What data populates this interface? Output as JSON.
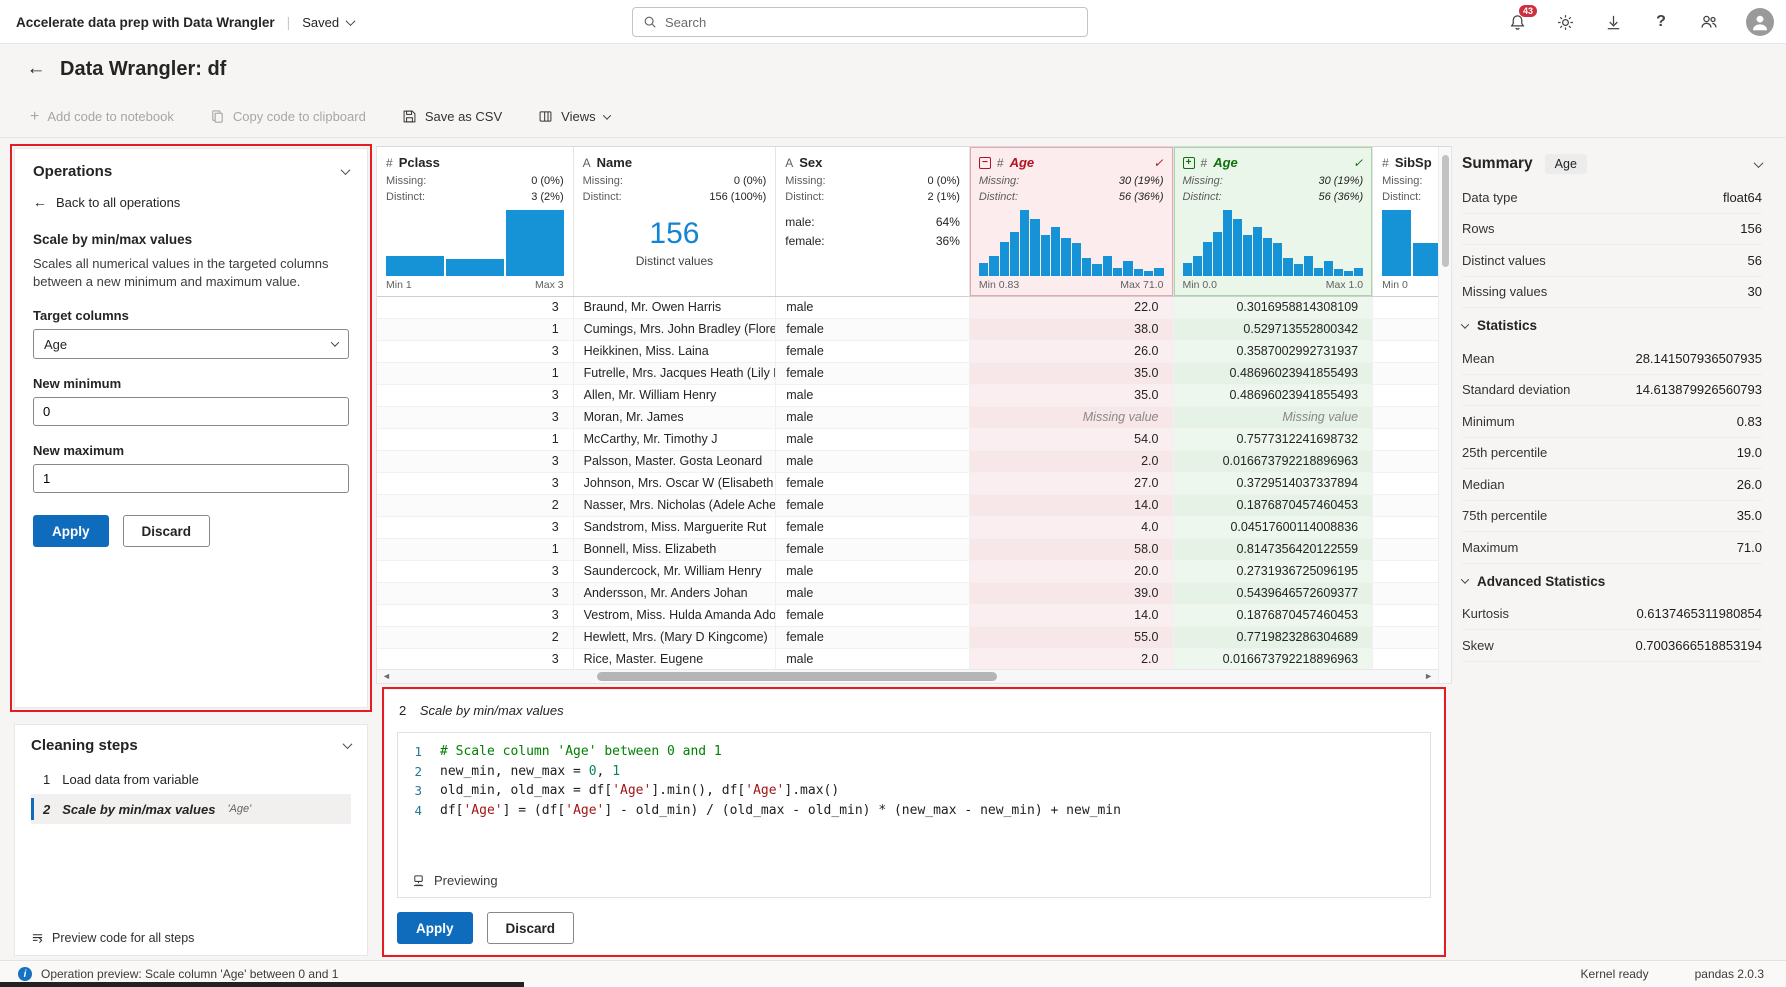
{
  "top_bar": {
    "app_title": "Accelerate data prep with Data Wrangler",
    "separator": "|",
    "save_status": "Saved",
    "search_placeholder": "Search",
    "notification_count": "43"
  },
  "page_header": {
    "title": "Data Wrangler: df"
  },
  "command_bar": {
    "add_code_label": "Add code to notebook",
    "copy_code_label": "Copy code to clipboard",
    "save_csv_label": "Save as CSV",
    "views_label": "Views"
  },
  "operations_panel": {
    "title": "Operations",
    "back_label": "Back to all operations",
    "operation_name": "Scale by min/max values",
    "description": "Scales all numerical values in the targeted columns between a new minimum and maximum value.",
    "target_columns_label": "Target columns",
    "target_columns_value": "Age",
    "new_minimum_label": "New minimum",
    "new_minimum_value": "0",
    "new_maximum_label": "New maximum",
    "new_maximum_value": "1",
    "apply_label": "Apply",
    "discard_label": "Discard"
  },
  "cleaning_steps": {
    "title": "Cleaning steps",
    "steps": [
      {
        "number": "1",
        "label": "Load data from variable",
        "detail": "",
        "selected": false
      },
      {
        "number": "2",
        "label": "Scale by min/max values",
        "detail": "'Age'",
        "selected": true
      }
    ],
    "preview_all_label": "Preview code for all steps"
  },
  "grid": {
    "missing_cell_label": "Missing value",
    "columns": {
      "pclass": {
        "type_icon": "#",
        "name": "Pclass",
        "missing_label": "Missing:",
        "missing": "0 (0%)",
        "distinct_label": "Distinct:",
        "distinct": "3 (2%)",
        "min": "Min 1",
        "max": "Max 3",
        "bars": [
          0.3,
          0.26,
          1.0
        ]
      },
      "name": {
        "type_icon": "A",
        "name": "Name",
        "missing_label": "Missing:",
        "missing": "0 (0%)",
        "distinct_label": "Distinct:",
        "distinct": "156 (100%)",
        "distinct_count": "156",
        "distinct_caption": "Distinct values"
      },
      "sex": {
        "type_icon": "A",
        "name": "Sex",
        "missing_label": "Missing:",
        "missing": "0 (0%)",
        "distinct_label": "Distinct:",
        "distinct": "2 (1%)",
        "categories": [
          {
            "label": "male:",
            "pct": "64%"
          },
          {
            "label": "female:",
            "pct": "36%"
          }
        ]
      },
      "age_old": {
        "type_icon": "#",
        "name": "Age",
        "diff": "removed",
        "diff_glyph": "−",
        "check": "✓",
        "missing_label": "Missing:",
        "missing": "30 (19%)",
        "distinct_label": "Distinct:",
        "distinct": "56 (36%)",
        "min": "Min 0.83",
        "max": "Max 71.0",
        "bars": [
          0.2,
          0.3,
          0.52,
          0.66,
          1.0,
          0.86,
          0.62,
          0.74,
          0.58,
          0.5,
          0.28,
          0.18,
          0.3,
          0.12,
          0.22,
          0.1,
          0.08,
          0.12
        ]
      },
      "age_new": {
        "type_icon": "#",
        "name": "Age",
        "diff": "added",
        "diff_glyph": "+",
        "check": "✓",
        "missing_label": "Missing:",
        "missing": "30 (19%)",
        "distinct_label": "Distinct:",
        "distinct": "56 (36%)",
        "min": "Min 0.0",
        "max": "Max 1.0",
        "bars": [
          0.2,
          0.3,
          0.52,
          0.66,
          1.0,
          0.86,
          0.62,
          0.74,
          0.58,
          0.5,
          0.28,
          0.18,
          0.3,
          0.12,
          0.22,
          0.1,
          0.08,
          0.12
        ]
      },
      "sibsp": {
        "type_icon": "#",
        "name": "SibSp",
        "missing_label": "Missing:",
        "missing": "",
        "distinct_label": "Distinct:",
        "distinct": "",
        "min": "Min 0",
        "max": "",
        "bars": [
          1.0,
          0.5
        ]
      }
    },
    "rows": [
      {
        "pclass": "3",
        "name": "Braund, Mr. Owen Harris",
        "sex": "male",
        "age": "22.0",
        "age_scaled": "0.3016958814308109"
      },
      {
        "pclass": "1",
        "name": "Cumings, Mrs. John Bradley (Florenc",
        "sex": "female",
        "age": "38.0",
        "age_scaled": "0.529713552800342"
      },
      {
        "pclass": "3",
        "name": "Heikkinen, Miss. Laina",
        "sex": "female",
        "age": "26.0",
        "age_scaled": "0.3587002992731937"
      },
      {
        "pclass": "1",
        "name": "Futrelle, Mrs. Jacques Heath (Lily Ma",
        "sex": "female",
        "age": "35.0",
        "age_scaled": "0.48696023941855493"
      },
      {
        "pclass": "3",
        "name": "Allen, Mr. William Henry",
        "sex": "male",
        "age": "35.0",
        "age_scaled": "0.48696023941855493"
      },
      {
        "pclass": "3",
        "name": "Moran, Mr. James",
        "sex": "male",
        "age": "Missing value",
        "age_scaled": "Missing value"
      },
      {
        "pclass": "1",
        "name": "McCarthy, Mr. Timothy J",
        "sex": "male",
        "age": "54.0",
        "age_scaled": "0.7577312241698732"
      },
      {
        "pclass": "3",
        "name": "Palsson, Master. Gosta Leonard",
        "sex": "male",
        "age": "2.0",
        "age_scaled": "0.016673792218896963"
      },
      {
        "pclass": "3",
        "name": "Johnson, Mrs. Oscar W (Elisabeth Vil",
        "sex": "female",
        "age": "27.0",
        "age_scaled": "0.3729514037337894"
      },
      {
        "pclass": "2",
        "name": "Nasser, Mrs. Nicholas (Adele Achem",
        "sex": "female",
        "age": "14.0",
        "age_scaled": "0.1876870457460453"
      },
      {
        "pclass": "3",
        "name": "Sandstrom, Miss. Marguerite Rut",
        "sex": "female",
        "age": "4.0",
        "age_scaled": "0.04517600114008836"
      },
      {
        "pclass": "1",
        "name": "Bonnell, Miss. Elizabeth",
        "sex": "female",
        "age": "58.0",
        "age_scaled": "0.8147356420122559"
      },
      {
        "pclass": "3",
        "name": "Saundercock, Mr. William Henry",
        "sex": "male",
        "age": "20.0",
        "age_scaled": "0.2731936725096195"
      },
      {
        "pclass": "3",
        "name": "Andersson, Mr. Anders Johan",
        "sex": "male",
        "age": "39.0",
        "age_scaled": "0.5439646572609377"
      },
      {
        "pclass": "3",
        "name": "Vestrom, Miss. Hulda Amanda Adolf",
        "sex": "female",
        "age": "14.0",
        "age_scaled": "0.1876870457460453"
      },
      {
        "pclass": "2",
        "name": "Hewlett, Mrs. (Mary D Kingcome)",
        "sex": "female",
        "age": "55.0",
        "age_scaled": "0.7719823286304689"
      },
      {
        "pclass": "3",
        "name": "Rice, Master. Eugene",
        "sex": "male",
        "age": "2.0",
        "age_scaled": "0.016673792218896963"
      }
    ]
  },
  "code_panel": {
    "step_number": "2",
    "title": "Scale by min/max values",
    "lines": [
      {
        "num": "1",
        "tokens": [
          [
            "comment",
            "# Scale column 'Age' between 0 and 1"
          ]
        ]
      },
      {
        "num": "2",
        "tokens": [
          [
            "plain",
            "new_min, new_max = "
          ],
          [
            "number",
            "0"
          ],
          [
            "plain",
            ", "
          ],
          [
            "number",
            "1"
          ]
        ]
      },
      {
        "num": "3",
        "tokens": [
          [
            "plain",
            "old_min, old_max = df["
          ],
          [
            "string",
            "'Age'"
          ],
          [
            "plain",
            "].min(), df["
          ],
          [
            "string",
            "'Age'"
          ],
          [
            "plain",
            "].max()"
          ]
        ]
      },
      {
        "num": "4",
        "tokens": [
          [
            "plain",
            "df["
          ],
          [
            "string",
            "'Age'"
          ],
          [
            "plain",
            "] = (df["
          ],
          [
            "string",
            "'Age'"
          ],
          [
            "plain",
            "] - old_min) / (old_max - old_min) * (new_max - new_min) + new_min"
          ]
        ]
      }
    ],
    "previewing_label": "Previewing",
    "apply_label": "Apply",
    "discard_label": "Discard"
  },
  "summary_panel": {
    "title": "Summary",
    "column_badge": "Age",
    "info_rows": [
      {
        "label": "Data type",
        "value": "float64"
      },
      {
        "label": "Rows",
        "value": "156"
      },
      {
        "label": "Distinct values",
        "value": "56"
      },
      {
        "label": "Missing values",
        "value": "30"
      }
    ],
    "sections": [
      {
        "title": "Statistics",
        "rows": [
          {
            "label": "Mean",
            "value": "28.141507936507935"
          },
          {
            "label": "Standard deviation",
            "value": "14.613879926560793"
          },
          {
            "label": "Minimum",
            "value": "0.83"
          },
          {
            "label": "25th percentile",
            "value": "19.0"
          },
          {
            "label": "Median",
            "value": "26.0"
          },
          {
            "label": "75th percentile",
            "value": "35.0"
          },
          {
            "label": "Maximum",
            "value": "71.0"
          }
        ]
      },
      {
        "title": "Advanced Statistics",
        "rows": [
          {
            "label": "Kurtosis",
            "value": "0.6137465311980854"
          },
          {
            "label": "Skew",
            "value": "0.7003666518853194"
          }
        ]
      }
    ]
  },
  "status_bar": {
    "message": "Operation preview: Scale column 'Age' between 0 and 1",
    "kernel_status": "Kernel ready",
    "pandas_version": "pandas 2.0.3"
  }
}
